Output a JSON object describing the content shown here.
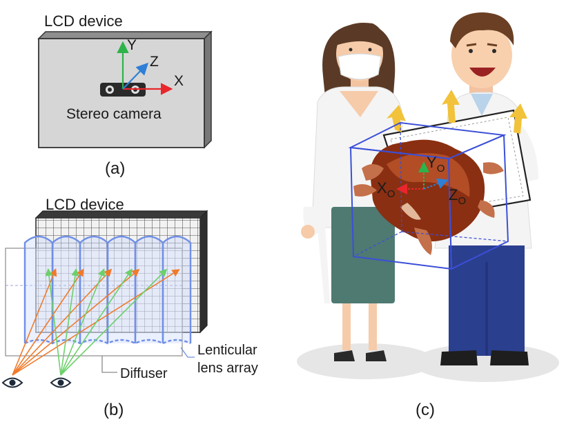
{
  "panel_a": {
    "title": "LCD device",
    "axis_x": "X",
    "axis_y": "Y",
    "axis_z": "Z",
    "camera_label": "Stereo camera",
    "caption": "(a)"
  },
  "panel_b": {
    "title": "LCD device",
    "lens_label_line1": "Lenticular",
    "lens_label_line2": "lens array",
    "diffuser_label": "Diffuser",
    "caption": "(b)"
  },
  "panel_c": {
    "axis_yo": "Y",
    "axis_xo": "X",
    "axis_zo": "Z",
    "axis_subscript": "O",
    "caption": "(c)"
  },
  "colors": {
    "x_axis": "#e8262c",
    "y_axis": "#2db34a",
    "z_axis": "#2f7fd6",
    "lens_blue": "#6f8fe6",
    "ray_orange": "#f07a2a",
    "ray_green": "#6cd06a",
    "cube_blue": "#3b4fd8"
  },
  "icons": [
    "left-eye-icon",
    "right-eye-icon",
    "stereo-camera-icon",
    "upward-arrow-icon"
  ]
}
